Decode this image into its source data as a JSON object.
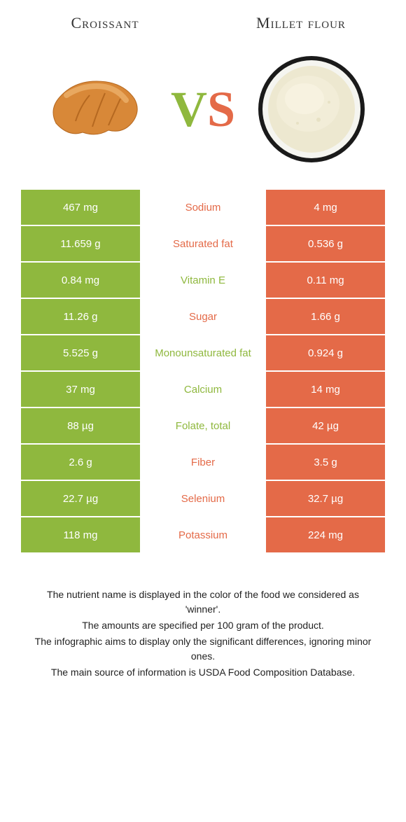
{
  "header": {
    "left_title": "Croissant",
    "right_title": "Millet flour",
    "vs_v": "V",
    "vs_s": "S"
  },
  "colors": {
    "green": "#8fb83e",
    "orange": "#e46a48",
    "nutrient_green": "#8fb83e",
    "nutrient_orange": "#e46a48"
  },
  "typography": {
    "title_fontsize": 22,
    "vs_fontsize": 72,
    "cell_fontsize": 15,
    "footnote_fontsize": 14
  },
  "rows": [
    {
      "left": "467 mg",
      "nutrient": "Sodium",
      "right": "4 mg",
      "winner": "orange"
    },
    {
      "left": "11.659 g",
      "nutrient": "Saturated fat",
      "right": "0.536 g",
      "winner": "orange"
    },
    {
      "left": "0.84 mg",
      "nutrient": "Vitamin E",
      "right": "0.11 mg",
      "winner": "green"
    },
    {
      "left": "11.26 g",
      "nutrient": "Sugar",
      "right": "1.66 g",
      "winner": "orange"
    },
    {
      "left": "5.525 g",
      "nutrient": "Monounsaturated fat",
      "right": "0.924 g",
      "winner": "green"
    },
    {
      "left": "37 mg",
      "nutrient": "Calcium",
      "right": "14 mg",
      "winner": "green"
    },
    {
      "left": "88 µg",
      "nutrient": "Folate, total",
      "right": "42 µg",
      "winner": "green"
    },
    {
      "left": "2.6 g",
      "nutrient": "Fiber",
      "right": "3.5 g",
      "winner": "orange"
    },
    {
      "left": "22.7 µg",
      "nutrient": "Selenium",
      "right": "32.7 µg",
      "winner": "orange"
    },
    {
      "left": "118 mg",
      "nutrient": "Potassium",
      "right": "224 mg",
      "winner": "orange"
    }
  ],
  "footnotes": [
    "The nutrient name is displayed in the color of the food we considered as 'winner'.",
    "The amounts are specified per 100 gram of the product.",
    "The infographic aims to display only the significant differences, ignoring minor ones.",
    "The main source of information is USDA Food Composition Database."
  ]
}
